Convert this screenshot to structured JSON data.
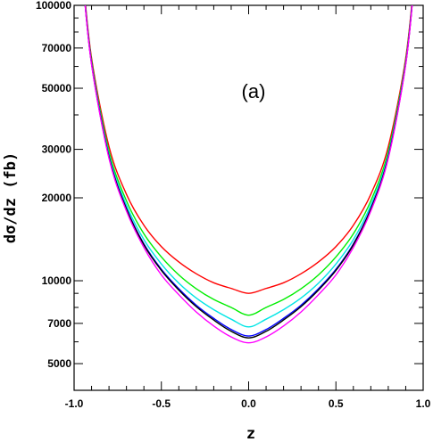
{
  "chart_data": {
    "type": "line",
    "title": "",
    "panel_label": "(a)",
    "xlabel": "z",
    "ylabel": "dσ/dz  (fb)",
    "xlim": [
      -1.0,
      1.0
    ],
    "ylim": [
      4000,
      100000
    ],
    "yscale": "log",
    "grid": false,
    "x_ticks": [
      -1.0,
      -0.5,
      0.0,
      0.5,
      1.0
    ],
    "x_tick_labels": [
      "-1.0",
      "-0.5",
      "0.0",
      "0.5",
      "1.0"
    ],
    "y_ticks": [
      5000,
      7000,
      10000,
      20000,
      30000,
      50000,
      70000,
      100000
    ],
    "y_tick_labels": [
      "5000",
      "7000",
      "10000",
      "20000",
      "30000",
      "50000",
      "70000",
      "100000"
    ],
    "x": [
      -0.95,
      -0.9,
      -0.8,
      -0.7,
      -0.6,
      -0.5,
      -0.4,
      -0.3,
      -0.2,
      -0.1,
      0.0,
      0.1,
      0.2,
      0.3,
      0.4,
      0.5,
      0.6,
      0.7,
      0.8,
      0.9,
      0.95
    ],
    "series": [
      {
        "color": "#ff0000",
        "values": [
          129000,
          64400,
          30700,
          20600,
          15900,
          13300,
          11700,
          10600,
          9830,
          9380,
          9000,
          9380,
          9830,
          10600,
          11700,
          13300,
          15900,
          20600,
          30700,
          64400,
          129000
        ]
      },
      {
        "color": "#00ee00",
        "values": [
          127000,
          63000,
          29500,
          19500,
          14800,
          12200,
          10500,
          9350,
          8550,
          8000,
          7500,
          8000,
          8550,
          9350,
          10500,
          12200,
          14800,
          19500,
          29500,
          63000,
          127000
        ]
      },
      {
        "color": "#00e5e5",
        "values": [
          126000,
          62000,
          28700,
          18800,
          14100,
          11500,
          9800,
          8650,
          7850,
          7250,
          6800,
          7250,
          7850,
          8650,
          9800,
          11500,
          14100,
          18800,
          28700,
          62000,
          126000
        ]
      },
      {
        "color": "#0000ff",
        "values": [
          125000,
          61500,
          28200,
          18300,
          13600,
          11000,
          9350,
          8150,
          7300,
          6650,
          6300,
          6650,
          7300,
          8150,
          9350,
          11000,
          13600,
          18300,
          28200,
          61500,
          125000
        ]
      },
      {
        "color": "#000000",
        "values": [
          125000,
          61400,
          28100,
          18200,
          13500,
          10900,
          9250,
          8050,
          7200,
          6550,
          6200,
          6550,
          7200,
          8050,
          9250,
          10900,
          13500,
          18200,
          28100,
          61400,
          125000
        ]
      },
      {
        "color": "#ff00ff",
        "values": [
          124000,
          61000,
          27800,
          17900,
          13200,
          10500,
          8900,
          7700,
          6850,
          6250,
          5950,
          6250,
          6850,
          7700,
          8900,
          10500,
          13200,
          17900,
          27800,
          61000,
          124000
        ]
      }
    ]
  }
}
